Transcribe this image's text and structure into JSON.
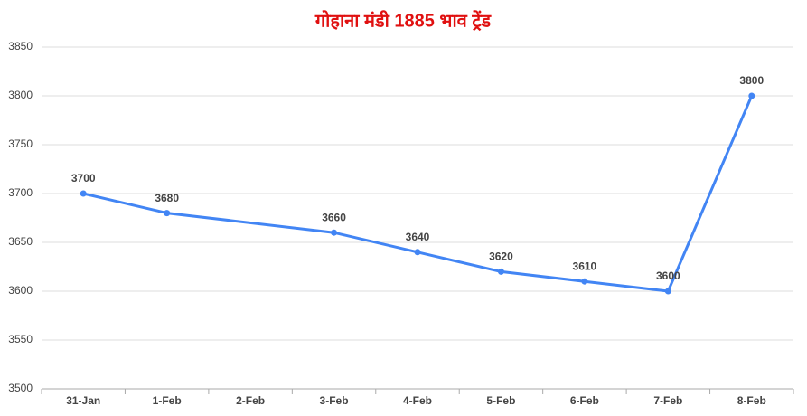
{
  "chart_data": {
    "type": "line",
    "title": "गोहाना मंडी 1885 भाव ट्रेंड",
    "categories": [
      "31-Jan",
      "1-Feb",
      "2-Feb",
      "3-Feb",
      "4-Feb",
      "5-Feb",
      "6-Feb",
      "7-Feb",
      "8-Feb"
    ],
    "series": [
      {
        "name": "भाव",
        "color": "#4285f4",
        "values": [
          3700,
          3680,
          null,
          3660,
          3640,
          3620,
          3610,
          3600,
          3800
        ]
      }
    ],
    "ylim": [
      3500,
      3850
    ],
    "yticks": [
      3500,
      3550,
      3600,
      3650,
      3700,
      3750,
      3800,
      3850
    ],
    "grid": true,
    "connect_gaps": true,
    "data_labels": true
  }
}
